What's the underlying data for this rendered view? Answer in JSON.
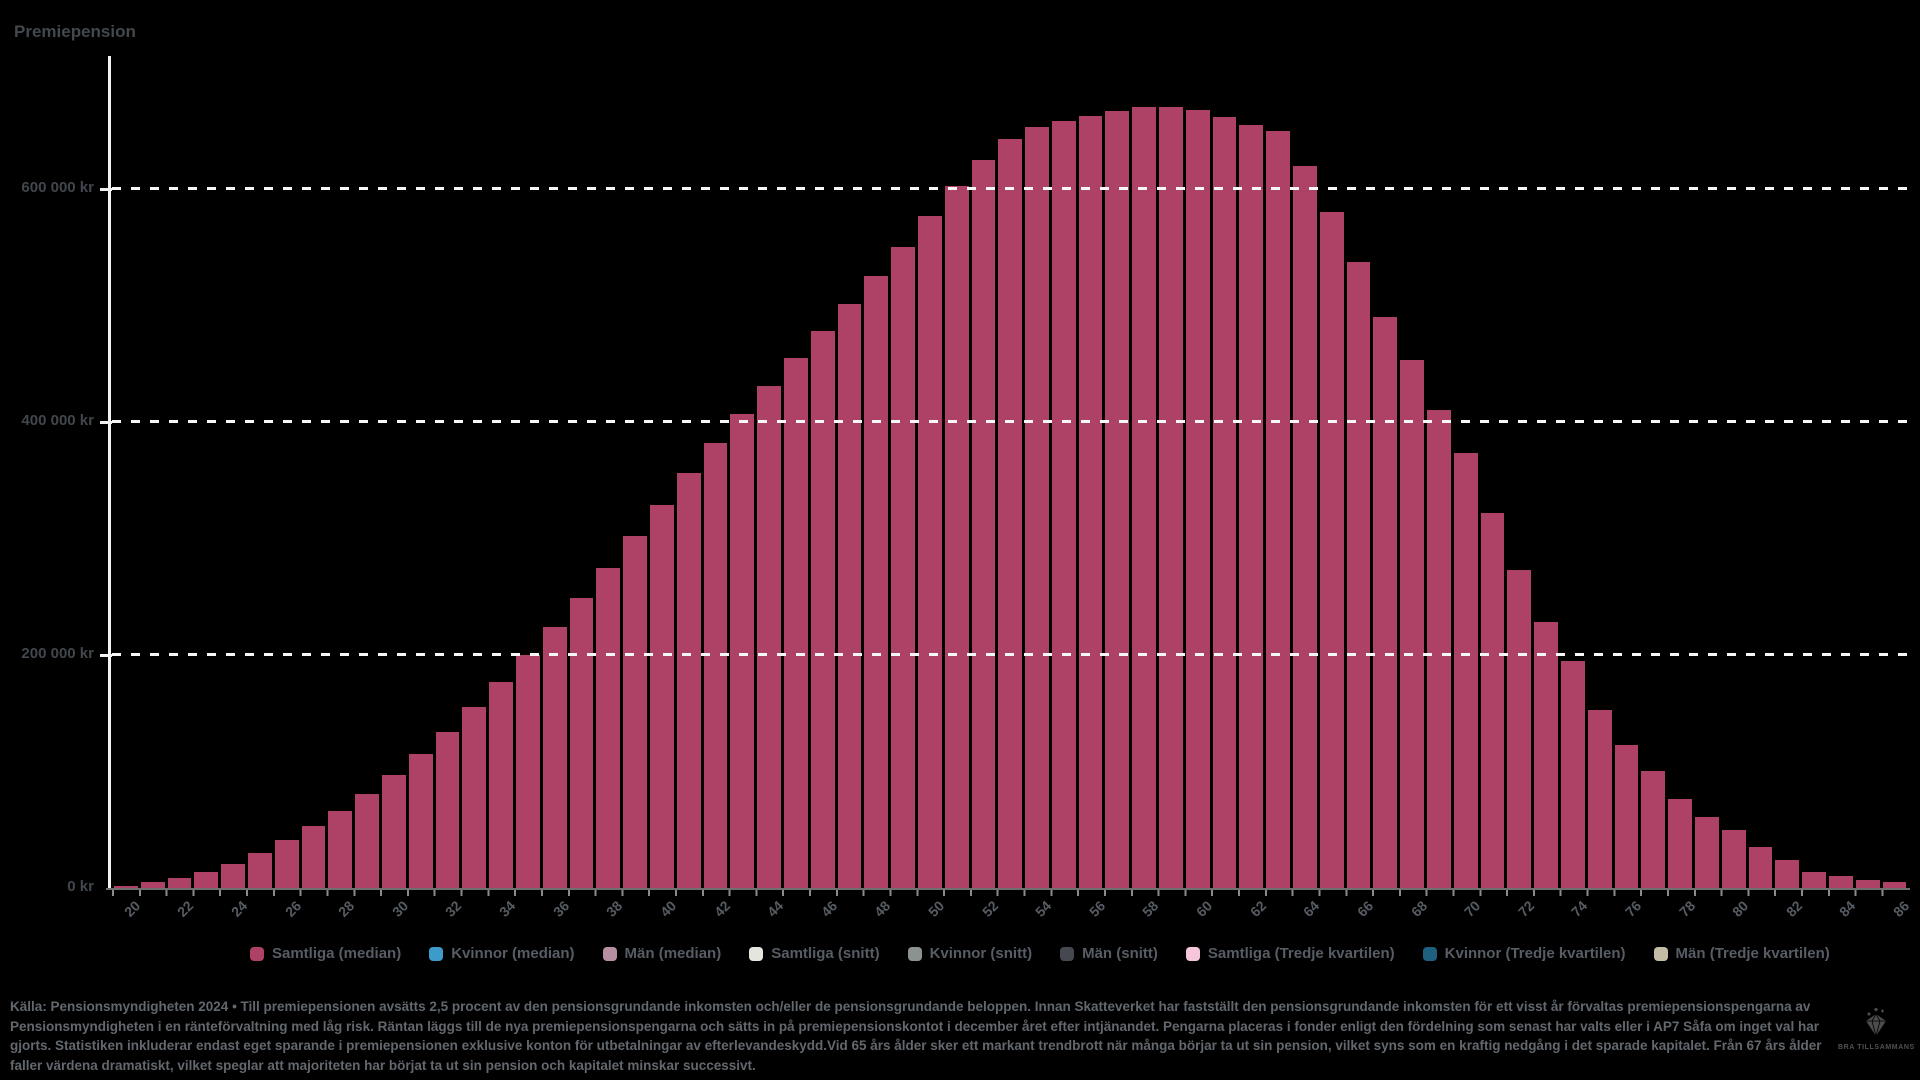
{
  "title": "Premiepension",
  "colors": {
    "background": "#000000",
    "bar": "#ae4166",
    "grid": "#f7f7f7",
    "axis": "#f2f2f2",
    "muted_text": "#575d64"
  },
  "chart_data": {
    "type": "bar",
    "title": "Premiepension",
    "xlabel": "",
    "ylabel": "kr",
    "grid": "dashed-horizontal",
    "ylim": [
      0,
      710000
    ],
    "y_ticks": [
      0,
      200000,
      400000,
      600000
    ],
    "y_tick_labels": [
      "0 kr",
      "200 000 kr",
      "400 000 kr",
      "600 000 kr"
    ],
    "x_tick_labels": [
      20,
      22,
      24,
      26,
      28,
      30,
      32,
      34,
      36,
      38,
      40,
      42,
      44,
      46,
      48,
      50,
      52,
      54,
      56,
      58,
      60,
      62,
      64,
      66,
      68,
      70,
      72,
      74,
      76,
      78,
      80,
      82,
      84,
      86
    ],
    "x": [
      20,
      21,
      22,
      23,
      24,
      25,
      26,
      27,
      28,
      29,
      30,
      31,
      32,
      33,
      34,
      35,
      36,
      37,
      38,
      39,
      40,
      41,
      42,
      43,
      44,
      45,
      46,
      47,
      48,
      49,
      50,
      51,
      52,
      53,
      54,
      55,
      56,
      57,
      58,
      59,
      60,
      61,
      62,
      63,
      64,
      65,
      66,
      67,
      68,
      69,
      70,
      71,
      72,
      73,
      74,
      75,
      76,
      77,
      78,
      79,
      80,
      81,
      82,
      83,
      84,
      85,
      86
    ],
    "series": [
      {
        "name": "Samtliga (median)",
        "color": "#ae4166",
        "values": [
          2000,
          5000,
          9000,
          14000,
          21000,
          30000,
          41000,
          53000,
          66000,
          81000,
          97000,
          115000,
          134000,
          155000,
          177000,
          200000,
          224000,
          249000,
          275000,
          302000,
          329000,
          356000,
          382000,
          407000,
          431000,
          455000,
          478000,
          501000,
          525000,
          550000,
          577000,
          603000,
          625000,
          643000,
          653000,
          658000,
          663000,
          667000,
          670000,
          670000,
          668000,
          662000,
          655000,
          650000,
          620000,
          580000,
          537000,
          490000,
          453000,
          410000,
          373000,
          322000,
          273000,
          228000,
          195000,
          153000,
          123000,
          100000,
          76000,
          61000,
          50000,
          35000,
          24000,
          14000,
          10000,
          7000,
          5000
        ]
      }
    ],
    "legend_position": "bottom"
  },
  "legend": [
    {
      "label": "Samtliga (median)",
      "color": "#ae4166"
    },
    {
      "label": "Kvinnor (median)",
      "color": "#3c9bc9"
    },
    {
      "label": "Män (median)",
      "color": "#b78fa1"
    },
    {
      "label": "Samtliga (snitt)",
      "color": "#e4e6dd"
    },
    {
      "label": "Kvinnor (snitt)",
      "color": "#8b9290"
    },
    {
      "label": "Män (snitt)",
      "color": "#45494f"
    },
    {
      "label": "Samtliga (Tredje kvartilen)",
      "color": "#f6c7da"
    },
    {
      "label": "Kvinnor (Tredje kvartilen)",
      "color": "#20607f"
    },
    {
      "label": "Män (Tredje kvartilen)",
      "color": "#c2bda4"
    }
  ],
  "footer": {
    "lines": [
      "Källa: Pensionsmyndigheten 2024 • Till premiepensionen avsätts 2,5 procent av den pensionsgrundande inkomsten och/eller de pensionsgrundande beloppen. Innan Skatteverket har fastställt den pensionsgrundande inkomsten för ett visst år förvaltas premiepensionspengarna av",
      "Pensionsmyndigheten i en ränteförvaltning med låg risk. Räntan läggs till de nya premiepensionspengarna och sätts in på premiepensionskontot i december året efter intjänandet. Pengarna placeras i fonder enligt den fördelning som senast har valts eller i AP7 Såfa om inget val har",
      "gjorts. Statistiken inkluderar endast eget sparande i premiepensionen exklusive konton för utbetalningar av efterlevandeskydd.Vid 65 års ålder sker ett markant trendbrott när många börjar ta ut sin pension, vilket syns som en kraftig nedgång i det sparade kapitalet. Från 67 års ålder",
      "faller värdena dramatiskt, vilket speglar att majoriteten har börjat ta ut sin pension och kapitalet minskar successivt."
    ]
  },
  "logo": {
    "text": "BRA TILLSAMMANS"
  }
}
